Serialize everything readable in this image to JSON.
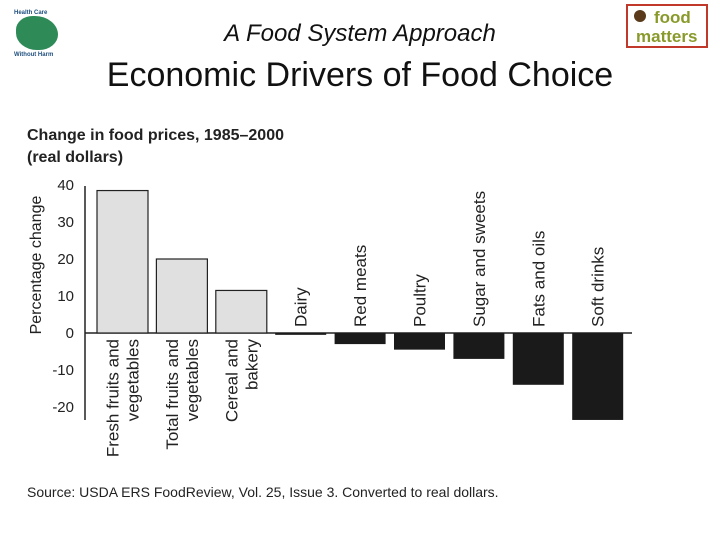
{
  "header": {
    "kicker": "A Food System Approach",
    "title": "Economic Drivers of Food Choice",
    "logo_left": {
      "line1": "Health Care",
      "line2": "Without Harm"
    },
    "logo_right": {
      "line1": "food",
      "line2": "matters"
    }
  },
  "chart_data": {
    "type": "bar",
    "title": "Change in food prices, 1985–2000",
    "subtitle": "(real dollars)",
    "ylabel": "Percentage change",
    "ylim": [
      -20,
      40
    ],
    "yticks": [
      40,
      30,
      20,
      10,
      0,
      -10,
      -20
    ],
    "categories": [
      {
        "lines": [
          "Fresh fruits and",
          "vegetables"
        ]
      },
      {
        "lines": [
          "Total fruits and",
          "vegetables"
        ]
      },
      {
        "lines": [
          "Cereal and",
          "bakery"
        ]
      },
      {
        "lines": [
          "Dairy"
        ]
      },
      {
        "lines": [
          "Red meats"
        ]
      },
      {
        "lines": [
          "Poultry"
        ]
      },
      {
        "lines": [
          "Sugar and sweets"
        ]
      },
      {
        "lines": [
          "Fats and oils"
        ]
      },
      {
        "lines": [
          "Soft drinks"
        ]
      }
    ],
    "values": [
      38.5,
      20,
      11.5,
      -0.5,
      -3,
      -4.5,
      -7,
      -14,
      -23.5
    ],
    "positive_color": "#e0e0e0",
    "negative_color": "#1a1a1a",
    "grid": false,
    "legend": "none"
  },
  "source": "Source: USDA ERS FoodReview, Vol. 25, Issue 3. Converted to real dollars."
}
